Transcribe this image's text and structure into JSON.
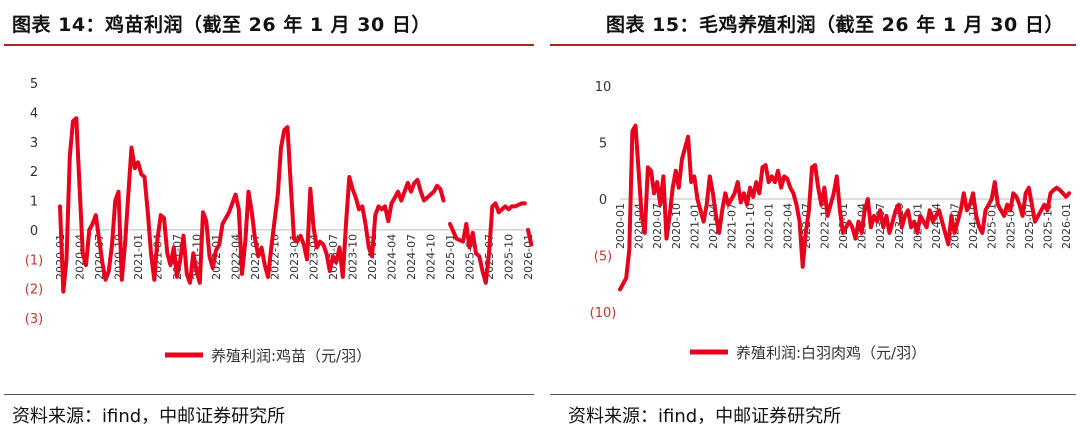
{
  "left_title": "图表 14：鸡苗利润（截至 26 年 1 月 30 日）",
  "right_title": "图表 15：毛鸡养殖利润（截至 26 年 1 月 30 日）",
  "left_source": "资料来源：ifind，中邮证券研究所",
  "right_source": "资料来源：ifind，中邮证券研究所",
  "colors": {
    "line": "#e8001c",
    "negative_label": "#c0392b",
    "rule": "#b22222"
  },
  "chart_data": [
    {
      "type": "line",
      "title": "",
      "ylim": [
        -3,
        5
      ],
      "y_ticks": [
        5,
        4,
        3,
        2,
        1,
        0,
        -1,
        -2,
        -3
      ],
      "y_tick_labels": [
        "5",
        "4",
        "3",
        "2",
        "1",
        "0",
        "(1)",
        "(2)",
        "(3)"
      ],
      "x_ticks": [
        "2020-01",
        "2020-04",
        "2020-07",
        "2020-10",
        "2021-01",
        "2021-04",
        "2021-07",
        "2021-10",
        "2022-01",
        "2022-04",
        "2022-07",
        "2022-10",
        "2023-01",
        "2023-04",
        "2023-07",
        "2023-10",
        "2024-01",
        "2024-04",
        "2024-07",
        "2024-10",
        "2025-01",
        "2025-04",
        "2025-07",
        "2025-10",
        "2026-01"
      ],
      "x_tick_labels": [
        "2020-01",
        "2020-04",
        "2020-07",
        "2020-10",
        "2021-01",
        "2021-04",
        "2021-07",
        "2021-10",
        "2022-01",
        "2022-04",
        "2022-07",
        "2022-10",
        "2023-01",
        "2023-04",
        "2023-07",
        "2023-10",
        "2024-01",
        "2024-04",
        "2024-07",
        "2024-10",
        "2025-01",
        "2025-04",
        "2025-07",
        "2025-10",
        "2026-01"
      ],
      "legend_position": "bottom",
      "series": [
        {
          "name": "养殖利润:鸡苗（元/羽）",
          "segments": [
            {
              "x": [
                "2020-01",
                "2020-01",
                "2020-02",
                "2020-02",
                "2020-03",
                "2020-03",
                "2020-04",
                "2020-04",
                "2020-05",
                "2020-05",
                "2020-06",
                "2020-06",
                "2020-07",
                "2020-07",
                "2020-08",
                "2020-08",
                "2020-09",
                "2020-09",
                "2020-10",
                "2020-10",
                "2020-11",
                "2020-11",
                "2020-12",
                "2020-12",
                "2021-01",
                "2021-01",
                "2021-02",
                "2021-02",
                "2021-03",
                "2021-03",
                "2021-04",
                "2021-04",
                "2021-05",
                "2021-05",
                "2021-06",
                "2021-06",
                "2021-07",
                "2021-07",
                "2021-08",
                "2021-08",
                "2021-09",
                "2021-09",
                "2021-10",
                "2021-10",
                "2021-11",
                "2021-11",
                "2021-12",
                "2021-12",
                "2022-01",
                "2022-01",
                "2022-02",
                "2022-02",
                "2022-03",
                "2022-03",
                "2022-04",
                "2022-04",
                "2022-05",
                "2022-05",
                "2022-06",
                "2022-06",
                "2022-07",
                "2022-07",
                "2022-08",
                "2022-08",
                "2022-09",
                "2022-09",
                "2022-10",
                "2022-10",
                "2022-11",
                "2022-11",
                "2022-12",
                "2022-12",
                "2023-01",
                "2023-01",
                "2023-02",
                "2023-02",
                "2023-03",
                "2023-03",
                "2023-04",
                "2023-04",
                "2023-05",
                "2023-05",
                "2023-06",
                "2023-06",
                "2023-07",
                "2023-07",
                "2023-08",
                "2023-08",
                "2023-09",
                "2023-09",
                "2023-10",
                "2023-10",
                "2023-11",
                "2023-11",
                "2023-12",
                "2023-12",
                "2024-01",
                "2024-01",
                "2024-02",
                "2024-02",
                "2024-03",
                "2024-03",
                "2024-04",
                "2024-04",
                "2024-05",
                "2024-05",
                "2024-06",
                "2024-06",
                "2024-07",
                "2024-07",
                "2024-08",
                "2024-08",
                "2024-09",
                "2024-09",
                "2024-10",
                "2024-10",
                "2024-11",
                "2024-11",
                "2024-12"
              ],
              "y": [
                0.8,
                -2.1,
                -1.0,
                2.5,
                3.7,
                3.8,
                1.5,
                -0.8,
                -1.2,
                0.0,
                0.2,
                0.5,
                -0.3,
                -1.1,
                -1.7,
                -1.4,
                -0.5,
                1.0,
                1.3,
                -1.7,
                -0.5,
                1.2,
                2.8,
                2.1,
                2.3,
                1.9,
                1.8,
                0.6,
                -0.8,
                -1.7,
                -0.3,
                0.5,
                0.4,
                -0.8,
                -1.2,
                -0.6,
                -1.6,
                -1.0,
                -0.2,
                -1.5,
                -1.8,
                -0.8,
                -1.4,
                -1.8,
                0.6,
                0.3,
                -0.9,
                -1.3,
                -0.7,
                -0.5,
                0.2,
                0.4,
                0.6,
                0.9,
                1.2,
                0.7,
                -1.5,
                -0.4,
                1.3,
                0.6,
                -0.3,
                -0.9,
                -0.6,
                -1.2,
                -1.6,
                -0.6,
                0.3,
                1.2,
                2.8,
                3.4,
                3.5,
                1.5,
                -0.3,
                -0.4,
                -0.2,
                -0.5,
                -1.0,
                1.4,
                0.1,
                -0.6,
                -0.4,
                -0.5,
                -0.8,
                -1.4,
                -0.9,
                -1.1,
                -0.6,
                -1.6,
                0.2,
                1.8,
                1.4,
                1.1,
                0.7,
                0.8,
                0.2,
                -0.6,
                -0.9,
                0.5,
                0.8,
                0.7,
                0.8,
                0.3,
                0.9,
                1.1,
                1.3,
                1.0,
                1.3,
                1.6,
                1.3,
                1.6,
                1.7,
                1.3,
                1.0,
                1.1,
                1.2,
                1.3,
                1.5,
                1.4,
                1.0
              ]
            },
            {
              "x": [
                "2025-01",
                "2025-02",
                "2025-03",
                "2025-03",
                "2025-04",
                "2025-04",
                "2025-05",
                "2025-05",
                "2025-06",
                "2025-06",
                "2025-07",
                "2025-07",
                "2025-08",
                "2025-08",
                "2025-09",
                "2025-09",
                "2025-10",
                "2025-10",
                "2025-11",
                "2025-12",
                "2025-12"
              ],
              "y": [
                0.2,
                -0.3,
                -0.4,
                0.2,
                -0.6,
                -0.1,
                -0.8,
                -0.9,
                -1.4,
                -1.8,
                -0.8,
                0.8,
                0.9,
                0.6,
                0.7,
                0.8,
                0.7,
                0.8,
                0.8,
                0.9,
                0.9
              ]
            },
            {
              "x": [
                "2026-01",
                "2026-01"
              ],
              "y": [
                0.0,
                -0.5
              ]
            }
          ]
        }
      ]
    },
    {
      "type": "line",
      "title": "",
      "ylim": [
        -10,
        10
      ],
      "y_ticks": [
        10,
        5,
        0,
        -5,
        -10
      ],
      "y_tick_labels": [
        "10",
        "5",
        "0",
        "(5)",
        "(10)"
      ],
      "x_ticks": [
        "2020-01",
        "2020-04",
        "2020-07",
        "2020-10",
        "2021-01",
        "2021-04",
        "2021-07",
        "2021-10",
        "2022-01",
        "2022-04",
        "2022-07",
        "2022-10",
        "2023-01",
        "2023-04",
        "2023-07",
        "2023-10",
        "2024-01",
        "2024-04",
        "2024-07",
        "2024-10",
        "2025-01",
        "2025-04",
        "2025-07",
        "2025-10",
        "2026-01"
      ],
      "x_tick_labels": [
        "2020-01",
        "2020-04",
        "2020-07",
        "2020-10",
        "2021-01",
        "2021-04",
        "2021-07",
        "2021-10",
        "2022-01",
        "2022-04",
        "2022-07",
        "2022-10",
        "2023-01",
        "2023-04",
        "2023-07",
        "2023-10",
        "2024-01",
        "2024-04",
        "2024-07",
        "2024-10",
        "2025-01",
        "2025-04",
        "2025-07",
        "2025-10",
        "2026-01"
      ],
      "legend_position": "bottom",
      "series": [
        {
          "name": "养殖利润:白羽肉鸡（元/羽）",
          "segments": [
            {
              "x": [
                "2020-01",
                "2020-02",
                "2020-02",
                "2020-03",
                "2020-03",
                "2020-04",
                "2020-04",
                "2020-05",
                "2020-05",
                "2020-06",
                "2020-06",
                "2020-07",
                "2020-07",
                "2020-08",
                "2020-08",
                "2020-09",
                "2020-09",
                "2020-10",
                "2020-10",
                "2020-11",
                "2020-12",
                "2020-12",
                "2021-01",
                "2021-01",
                "2021-02",
                "2021-02",
                "2021-03",
                "2021-03",
                "2021-04",
                "2021-04",
                "2021-05",
                "2021-05",
                "2021-06",
                "2021-06",
                "2021-07",
                "2021-07",
                "2021-08",
                "2021-08",
                "2021-09",
                "2021-09",
                "2021-10",
                "2021-10",
                "2021-11",
                "2021-11",
                "2021-12",
                "2021-12",
                "2022-01",
                "2022-01",
                "2022-02",
                "2022-02",
                "2022-03",
                "2022-03",
                "2022-04",
                "2022-04",
                "2022-05",
                "2022-05",
                "2022-06",
                "2022-06",
                "2022-07",
                "2022-07",
                "2022-08",
                "2022-08",
                "2022-09",
                "2022-09",
                "2022-10",
                "2022-10",
                "2022-11",
                "2022-11",
                "2022-12",
                "2022-12",
                "2023-01",
                "2023-01",
                "2023-02",
                "2023-02",
                "2023-03",
                "2023-03",
                "2023-04",
                "2023-04",
                "2023-05",
                "2023-05",
                "2023-06",
                "2023-06",
                "2023-07",
                "2023-07",
                "2023-08",
                "2023-08",
                "2023-09",
                "2023-09",
                "2023-10",
                "2023-10",
                "2023-11",
                "2023-11",
                "2023-12",
                "2023-12",
                "2024-01",
                "2024-01",
                "2024-02",
                "2024-02",
                "2024-03",
                "2024-03",
                "2024-04",
                "2024-04",
                "2024-05",
                "2024-05",
                "2024-06",
                "2024-06",
                "2024-07",
                "2024-07",
                "2024-08",
                "2024-08",
                "2024-09",
                "2024-09",
                "2024-10",
                "2024-10",
                "2024-11",
                "2024-11",
                "2024-12",
                "2024-12",
                "2025-01",
                "2025-01",
                "2025-02",
                "2025-02",
                "2025-03",
                "2025-03",
                "2025-04",
                "2025-04",
                "2025-05",
                "2025-05",
                "2025-06",
                "2025-06",
                "2025-07",
                "2025-07",
                "2025-08",
                "2025-08",
                "2025-09",
                "2025-09",
                "2025-10",
                "2025-10",
                "2025-11",
                "2025-11",
                "2025-12",
                "2025-12",
                "2026-01",
                "2026-01"
              ],
              "y": [
                -8.0,
                -7.0,
                -4.5,
                6.0,
                6.5,
                2.5,
                -1.5,
                -3.0,
                2.8,
                2.5,
                0.5,
                1.5,
                -0.5,
                2.0,
                -3.5,
                -1.5,
                1.0,
                2.5,
                1.0,
                3.5,
                5.5,
                1.5,
                2.0,
                0.0,
                -1.0,
                -2.0,
                -0.5,
                2.0,
                0.5,
                -1.5,
                -3.0,
                -1.0,
                0.5,
                -0.5,
                0.0,
                0.5,
                1.5,
                -0.3,
                0.5,
                -0.5,
                1.0,
                0.2,
                1.5,
                0.5,
                2.8,
                3.0,
                1.5,
                2.0,
                1.5,
                2.5,
                1.0,
                2.0,
                1.8,
                1.0,
                0.5,
                -0.5,
                -2.0,
                -6.0,
                -3.0,
                -1.0,
                2.8,
                3.0,
                1.0,
                -0.5,
                1.0,
                -1.5,
                -0.5,
                0.5,
                2.0,
                -1.0,
                -3.0,
                -2.5,
                -2.0,
                -2.5,
                -3.5,
                -2.0,
                -3.0,
                -1.0,
                0.0,
                -2.5,
                -1.5,
                -2.0,
                -1.0,
                -2.5,
                -1.5,
                -3.0,
                -2.0,
                -1.0,
                -0.5,
                -2.5,
                -1.5,
                -1.0,
                -2.5,
                -2.0,
                -3.0,
                -1.5,
                -2.0,
                -2.5,
                -1.0,
                -2.0,
                -1.5,
                -1.0,
                -2.0,
                -3.0,
                -4.0,
                -1.5,
                -3.0,
                -2.0,
                -1.0,
                0.5,
                -1.0,
                -0.5,
                0.5,
                -1.5,
                -2.5,
                -3.0,
                -1.0,
                -0.5,
                0.0,
                1.5,
                -0.5,
                -1.0,
                -1.5,
                -0.5,
                -1.0,
                0.5,
                0.2,
                -0.5,
                -1.5,
                0.5,
                1.0,
                -0.5,
                -2.0,
                -1.5,
                -1.0,
                -0.5,
                -1.0,
                0.5,
                0.8,
                1.0,
                0.8,
                0.5,
                0.2,
                0.5
              ]
            }
          ]
        }
      ]
    }
  ]
}
